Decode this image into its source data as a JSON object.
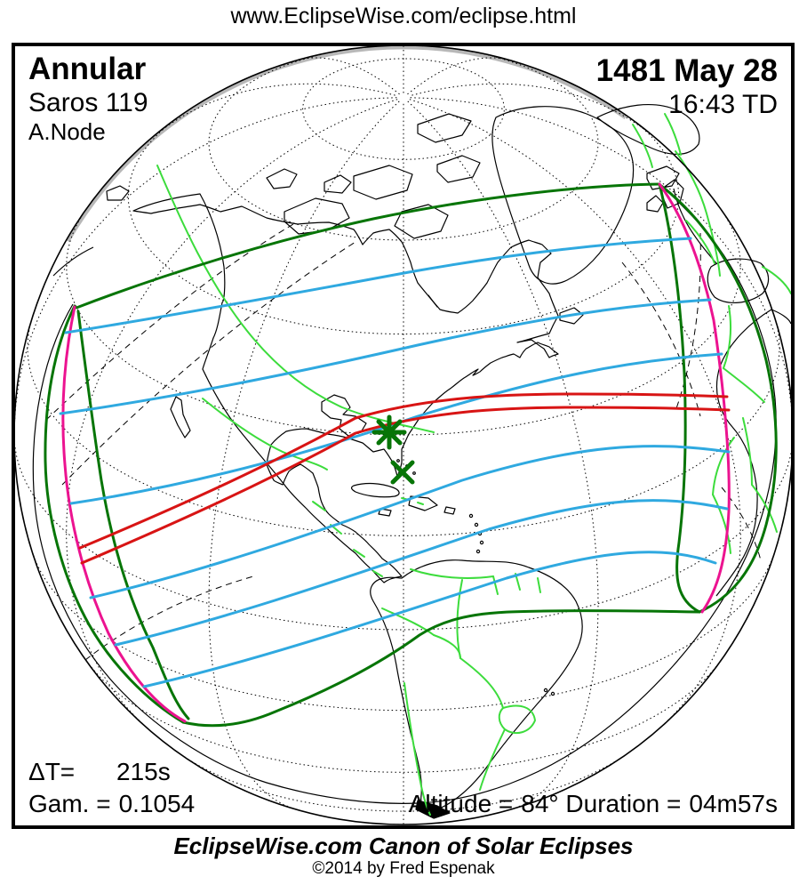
{
  "header": {
    "url": "www.EclipseWise.com/eclipse.html"
  },
  "panel": {
    "type_label": "Annular",
    "saros_label": "Saros 119",
    "node_label": "A.Node",
    "date_label": "1481 May 28",
    "time_label": "16:43 TD",
    "delta_t": {
      "label": "ΔT=",
      "value": "215s"
    },
    "gamma": {
      "label": "Gam. =",
      "value": "0.1054"
    },
    "altitude": {
      "label": "Altitude =",
      "value": "84°"
    },
    "duration": {
      "label": "Duration =",
      "value": "04m57s"
    }
  },
  "footer": {
    "title": "EclipseWise.com Canon of Solar Eclipses",
    "copyright": "©2014 by Fred Espenak"
  },
  "map": {
    "colors": {
      "central_path": "#d81414",
      "magnitude_contour": "#2fa9e0",
      "sunrise_sunset_curve": "#ec1390",
      "penumbra_limit": "#077507",
      "country_border": "#3cdc3c",
      "coastline": "#000000",
      "graticule": "#000000",
      "limb_shading": "#b8b8b8"
    },
    "markers": [
      {
        "name": "greatest-eclipse-star",
        "shape": "asterisk",
        "color": "#077507"
      },
      {
        "name": "path-point-x",
        "shape": "x",
        "color": "#077507"
      }
    ]
  }
}
